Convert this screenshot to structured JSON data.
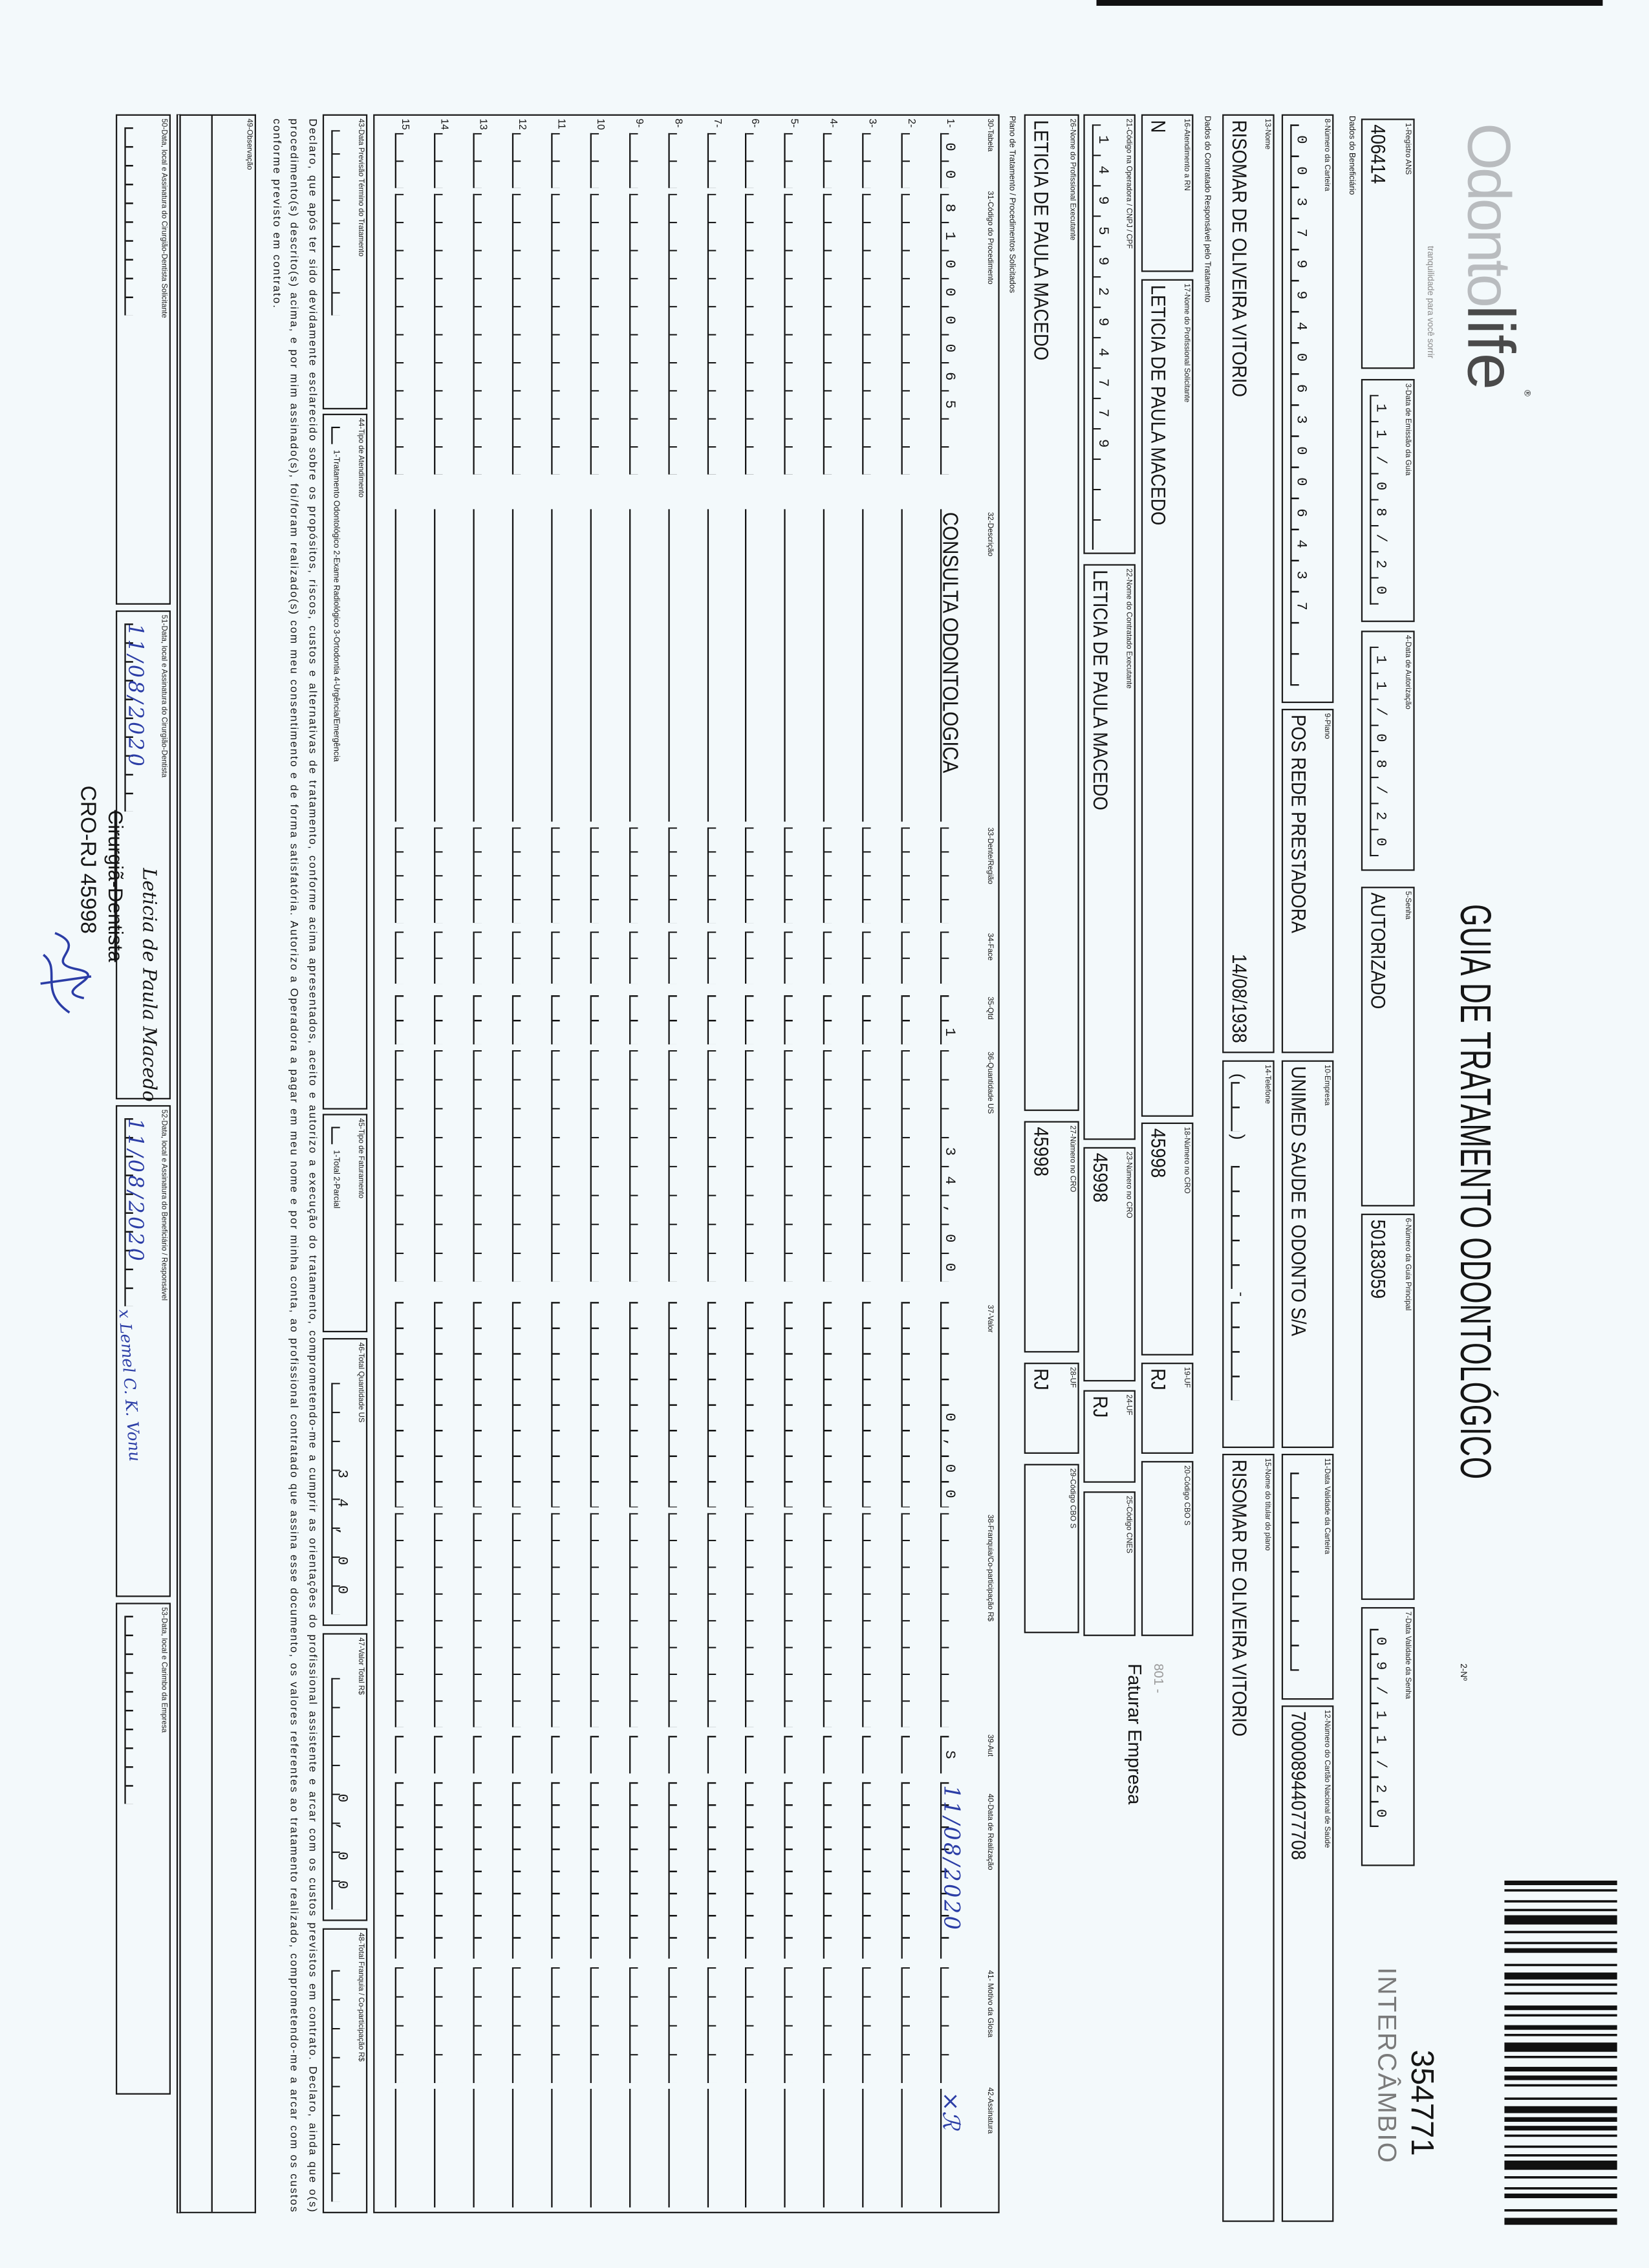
{
  "header": {
    "logo": {
      "part1": "Odonto",
      "part2": "life",
      "mark": "®",
      "tagline": "tranquilidade para você sorrir"
    },
    "title": "GUIA DE TRATAMENTO ODONTOLÓGICO",
    "numero_label": "2-Nº",
    "numero": "354771",
    "tipo": "INTERCÂMBIO"
  },
  "sections": {
    "beneficiario": "Dados do Beneficiário",
    "contratado": "Dados do Contratado Responsável pelo Tratamento",
    "plano": "Plano de Tratamento / Procedimentos Solicitados"
  },
  "fields": {
    "f1": {
      "label": "1-Registro ANS",
      "value": "406414"
    },
    "f3": {
      "label": "3-Data de Emissão da Guia",
      "value": "11/08/20"
    },
    "f4": {
      "label": "4-Data de Autorização",
      "value": "11/08/20"
    },
    "f5": {
      "label": "5-Senha",
      "value": "AUTORIZADO"
    },
    "f6": {
      "label": "6-Número da Guia Principal",
      "value": "50183059"
    },
    "f7": {
      "label": "7-Data Validade da Senha",
      "value": "09/11/20"
    },
    "f8": {
      "label": "8-Número da Carteira",
      "value": "0037994063006437"
    },
    "f9": {
      "label": "9-Plano",
      "value": "POS REDE PRESTADORA"
    },
    "f10": {
      "label": "10-Empresa",
      "value": "UNIMED SAUDE E ODONTO S/A"
    },
    "f11": {
      "label": "11-Data Validade da Carteira",
      "value": ""
    },
    "f12": {
      "label": "12-Número do Cartão Nacional de Saúde",
      "value": "700008944077708"
    },
    "f13": {
      "label": "13-Nome",
      "value": "RISOMAR DE OLIVEIRA VITORIO",
      "date": "14/08/1938"
    },
    "f14": {
      "label": "14-Telefone",
      "value": ""
    },
    "f15": {
      "label": "15-Nome do titular do plano",
      "value": "RISOMAR DE OLIVEIRA VITORIO"
    },
    "f16": {
      "label": "16-Atendimento a RN",
      "value": "N"
    },
    "f17": {
      "label": "17-Nome do Profissional Solicitante",
      "value": "LETICIA DE PAULA MACEDO"
    },
    "f18": {
      "label": "18-Número no CRO",
      "value": "45998"
    },
    "f19": {
      "label": "19-UF",
      "value": "RJ"
    },
    "f20": {
      "label": "20-Código CBO S",
      "value": ""
    },
    "f21": {
      "label": "21-Código na Operadora / CNPJ / CPF",
      "value": "14959294779"
    },
    "f22": {
      "label": "22-Nome do Contratado Executante",
      "value": "LETICIA DE PAULA MACEDO"
    },
    "f23": {
      "label": "23-Número no CRO",
      "value": "45998"
    },
    "f24": {
      "label": "24-UF",
      "value": "RJ"
    },
    "f25": {
      "label": "25-Código CNES",
      "value": ""
    },
    "f26": {
      "label": "26-Nome do Profissional Executante",
      "value": "LETICIA DE PAULA MACEDO"
    },
    "f27": {
      "label": "27-Número no CRO",
      "value": "45998"
    },
    "f28": {
      "label": "28-UF",
      "value": "RJ"
    },
    "f29": {
      "label": "29-Código CBO S",
      "value": ""
    }
  },
  "notes": {
    "code": "801 -",
    "billing": "Faturar Empresa"
  },
  "table": {
    "headers": {
      "tabela": "30-Tabela",
      "codigo": "31-Código do Procedimento",
      "descricao": "32-Descrição",
      "dente": "33-Dente/Região",
      "face": "34-Face",
      "qtd": "35-Qtd",
      "quantidade_us": "36-Quantidade US",
      "valor": "37-Valor",
      "franquia": "38-Franquia/Co-participação R$",
      "aut": "39-Aut",
      "data": "40-Data de Realização",
      "motivo": "41- Motivo da Glosa",
      "assinatura": "42-Assinatura"
    },
    "rows": [
      {
        "n": "1-",
        "tabela": "00",
        "codigo": "81000065",
        "descricao": "CONSULTA ODONTOLOGICA",
        "dente": "",
        "face": "",
        "qtd": "1",
        "quantidade_us": "34,00",
        "valor": "0,00",
        "franquia": "",
        "aut": "S",
        "data": "11/08/2020",
        "motivo": "",
        "assinatura": "×ℛ"
      },
      {
        "n": "2-"
      },
      {
        "n": "3-"
      },
      {
        "n": "4-"
      },
      {
        "n": "5-"
      },
      {
        "n": "6-"
      },
      {
        "n": "7-"
      },
      {
        "n": "8-"
      },
      {
        "n": "9-"
      },
      {
        "n": "10"
      },
      {
        "n": "11"
      },
      {
        "n": "12"
      },
      {
        "n": "13"
      },
      {
        "n": "14"
      },
      {
        "n": "15"
      }
    ]
  },
  "totals": {
    "f43": {
      "label": "43-Data Previsão Término do Tratamento",
      "value": ""
    },
    "f44": {
      "label": "44-Tipo de Atendimento",
      "value": "",
      "options": "1-Tratamento Odontológico 2-Exame Radiológico 3-Ortodontia 4-Urgência/Emergência"
    },
    "f45": {
      "label": "45-Tipo de Faturamento",
      "value": "",
      "options": "1-Total 2-Parcial"
    },
    "f46": {
      "label": "46-Total Quantidade US",
      "value": "34,00"
    },
    "f47": {
      "label": "47-Valor Total R$",
      "value": "0,00"
    },
    "f48": {
      "label": "48-Total Franquia / Co-participação R$",
      "value": ""
    }
  },
  "declaration": "Declaro, que após ter sido devidamente esclarecido sobre os propósitos, riscos, custos e alternativas de tratamento, conforme acima apresentados, aceito e autorizo a execução do tratamento, comprometendo-me a cumprir as orientações do profissional assistente e arcar com os custos previstos em contrato. Declaro, ainda que o(s) procedimento(s) descrito(s) acima, e por mim assinado(s), foi/foram realizado(s) com meu consentimento e de forma satisfatória. Autorizo a Operadora a pagar em meu nome e por minha conta, ao profissional contratado que assina esse documento, os valores referentes ao tratamento realizado, comprometendo-me a arcar com os custos conforme previsto em contrato.",
  "observacao": {
    "label": "49-Observação",
    "value": ""
  },
  "signatures": {
    "f50": {
      "label": "50-Data, local e Assinatura do Cirurgião-Dentista Solicitante",
      "value": ""
    },
    "f51": {
      "label": "51-Data, local e Assinatura do Cirurgião-Dentista",
      "value": "11/08/2020"
    },
    "f52": {
      "label": "52-Data, local e Assinatura do Beneficiário / Responsável",
      "value": "11/08/2020",
      "signature": "x Lemel C. K. Vonu"
    },
    "f53": {
      "label": "53-Data, local e Carimbo da Empresa",
      "value": ""
    }
  },
  "stamp": {
    "name": "Leticia de Paula Macedo",
    "title": "Cirurgiã-Dentista",
    "cro": "CRO-RJ 45998"
  },
  "colors": {
    "ink": "#151515",
    "handwriting": "#2b3da6",
    "paper": "#f3f9fb"
  }
}
